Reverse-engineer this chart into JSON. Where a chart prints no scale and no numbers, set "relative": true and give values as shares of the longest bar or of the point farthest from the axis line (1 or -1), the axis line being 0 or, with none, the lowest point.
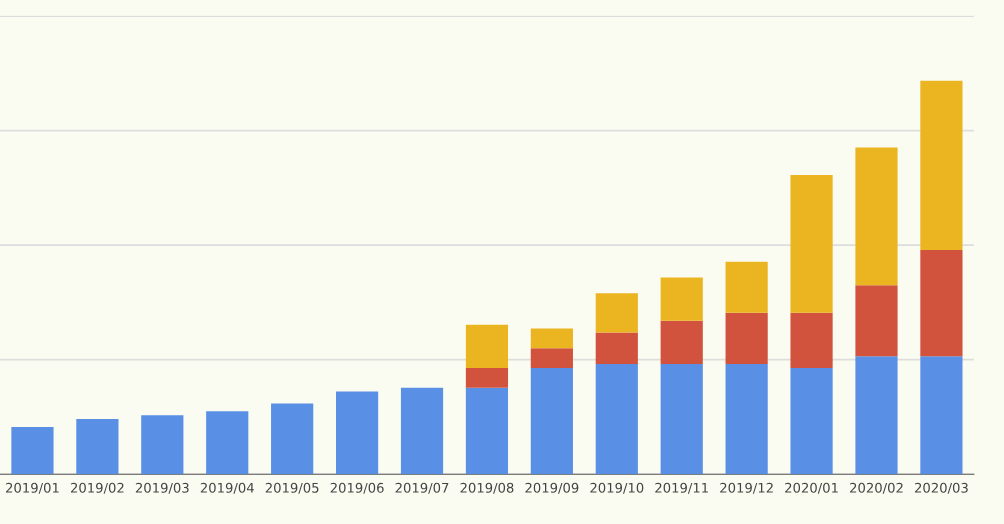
{
  "chart_data": {
    "type": "bar",
    "stacked": true,
    "relative": true,
    "grid": "y",
    "legend": false,
    "tick_labels": "x",
    "categories": [
      "2019/01",
      "2019/02",
      "2019/03",
      "2019/04",
      "2019/05",
      "2019/06",
      "2019/07",
      "2019/08",
      "2019/09",
      "2019/10",
      "2019/11",
      "2019/12",
      "2020/01",
      "2020/02",
      "2020/03"
    ],
    "series": [
      {
        "color": "#5a8fe6",
        "values": [
          0.12,
          0.14,
          0.15,
          0.16,
          0.18,
          0.21,
          0.22,
          0.22,
          0.27,
          0.28,
          0.28,
          0.28,
          0.27,
          0.3,
          0.3
        ]
      },
      {
        "color": "#d2533d",
        "values": [
          0,
          0,
          0,
          0,
          0,
          0,
          0,
          0.05,
          0.05,
          0.08,
          0.11,
          0.13,
          0.14,
          0.18,
          0.27
        ]
      },
      {
        "color": "#ebb521",
        "values": [
          0,
          0,
          0,
          0,
          0,
          0,
          0,
          0.11,
          0.05,
          0.1,
          0.11,
          0.13,
          0.35,
          0.35,
          0.43
        ]
      }
    ]
  }
}
